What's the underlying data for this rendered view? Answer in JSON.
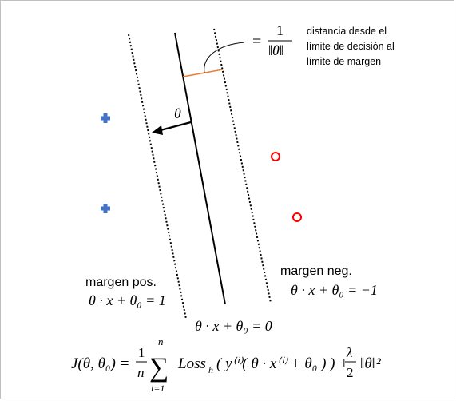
{
  "colors": {
    "line": "#000000",
    "distance_tick": "#ed7d31",
    "positive_marker": "#4472c4",
    "negative_marker": "#ff0000"
  },
  "markers": {
    "positive_icon": "plus-icon",
    "negative_icon": "circle-icon"
  },
  "annotation": {
    "equals": "=",
    "numerator": "1",
    "denominator": "‖θ‖",
    "note_line1": "distancia desde el",
    "note_line2": "límite de decisión al",
    "note_line3": "límite de margen"
  },
  "theta_label": "θ",
  "labels": {
    "positive_margin_title": "margen pos.",
    "positive_margin_eq": "θ · x + θ₀ = 1",
    "negative_margin_title": "margen neg.",
    "negative_margin_eq": "θ · x + θ₀ = −1",
    "decision_eq": "θ · x + θ₀ = 0"
  },
  "objective": {
    "lhs": "J(θ, θ₀) =",
    "frac_num": "1",
    "frac_den": "n",
    "sum_top": "n",
    "sum_symbol": "∑",
    "sum_bottom": "i=1",
    "loss": "Loss",
    "loss_sub": "h",
    "body": "( y⁽ⁱ⁾( θ · x⁽ⁱ⁾ + θ₀ ) ) +",
    "lambda_num": "λ",
    "lambda_den": "2",
    "reg": "‖θ‖²"
  }
}
